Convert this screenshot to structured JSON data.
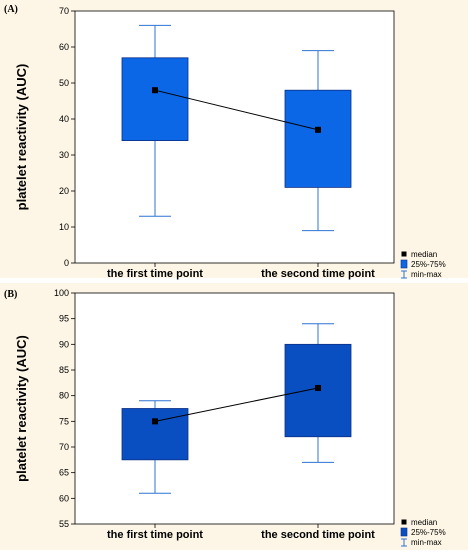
{
  "panels": [
    {
      "label": "(A)"
    },
    {
      "label": "(B)"
    }
  ],
  "colors": {
    "panel_bg": "#fdf6e6",
    "box_fill_a": "#0b67e6",
    "box_fill_b": "#0a4fc2",
    "box_stroke": "#0a2f85",
    "whisker": "#2f74d2",
    "median_line": "#000000",
    "median_marker": "#000000"
  },
  "chart_data": [
    {
      "type": "box",
      "ylabel": "platelet reactivity (AUC)",
      "categories": [
        "the first time point",
        "the second time point"
      ],
      "ylim": [
        0,
        70
      ],
      "yticks": [
        0,
        10,
        20,
        30,
        40,
        50,
        60,
        70
      ],
      "grid": false,
      "legend_position": "bottom-right outside",
      "legend": [
        "median",
        "25%-75%",
        "min-max"
      ],
      "boxes": [
        {
          "min": 13,
          "q1": 34,
          "median": 48,
          "q3": 57,
          "max": 66
        },
        {
          "min": 9,
          "q1": 21,
          "median": 37,
          "q3": 48,
          "max": 59
        }
      ],
      "median_connected": true
    },
    {
      "type": "box",
      "ylabel": "platelet reactivity (AUC)",
      "categories": [
        "the first time point",
        "the second time point"
      ],
      "ylim": [
        55,
        100
      ],
      "yticks": [
        55,
        60,
        65,
        70,
        75,
        80,
        85,
        90,
        95,
        100
      ],
      "grid": false,
      "legend_position": "bottom-right outside",
      "legend": [
        "median",
        "25%-75%",
        "min-max"
      ],
      "boxes": [
        {
          "min": 61,
          "q1": 67.5,
          "median": 75,
          "q3": 77.5,
          "max": 79
        },
        {
          "min": 67,
          "q1": 72,
          "median": 81.5,
          "q3": 90,
          "max": 94
        }
      ],
      "median_connected": true
    }
  ]
}
